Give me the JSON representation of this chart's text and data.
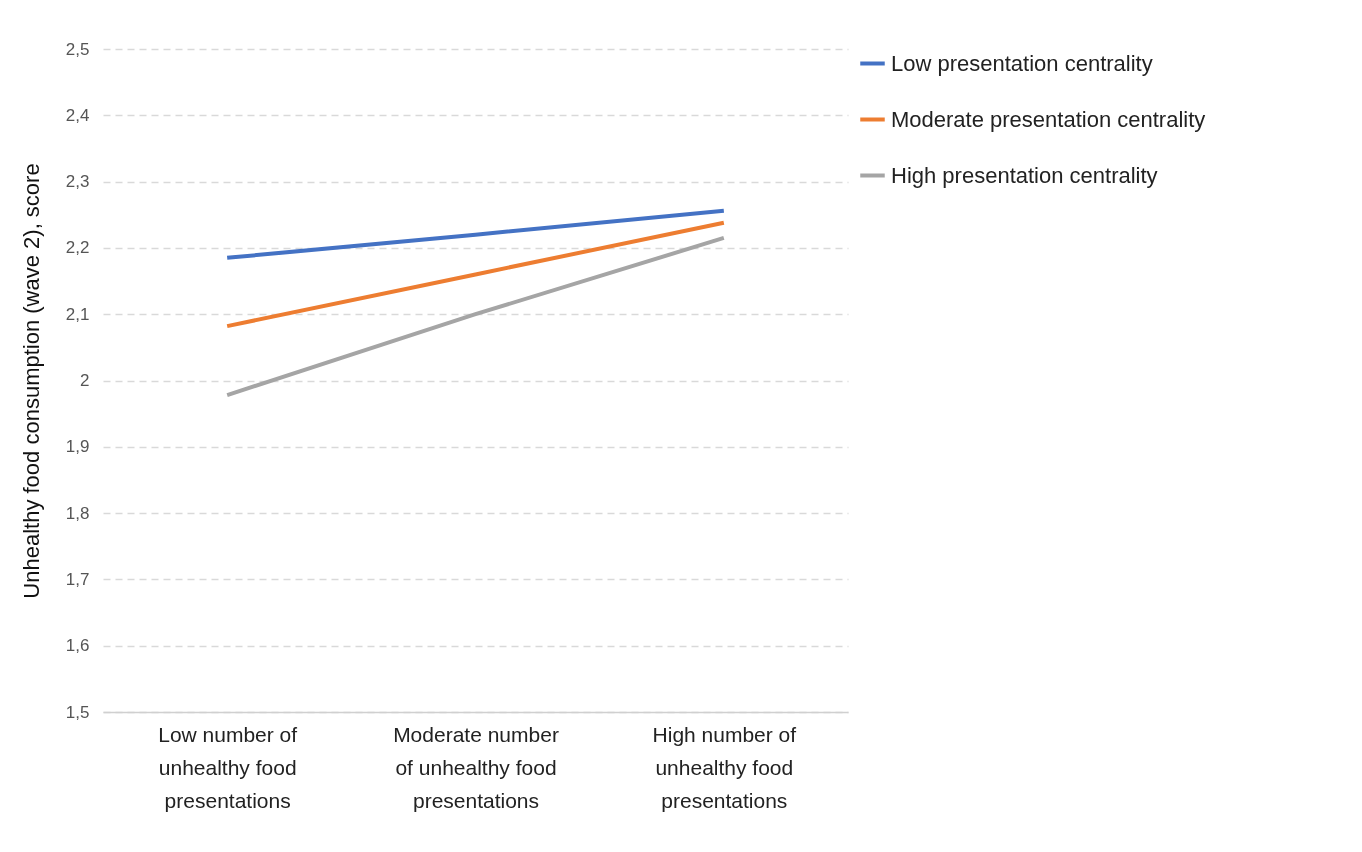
{
  "chart_data": {
    "type": "line",
    "ylabel": "Unhealthy food consumption (wave 2), score",
    "categories": [
      "Low number of unhealthy food presentations",
      "Moderate number of unhealthy food presentations",
      "High number of unhealthy food presentations"
    ],
    "series": [
      {
        "name": "Low presentation centrality",
        "color": "#4472c4",
        "values": [
          2.185,
          2.22,
          2.256
        ]
      },
      {
        "name": "Moderate presentation centrality",
        "color": "#ed7d31",
        "values": [
          2.082,
          2.16,
          2.238
        ]
      },
      {
        "name": "High presentation centrality",
        "color": "#a5a5a5",
        "values": [
          1.978,
          2.1,
          2.215
        ]
      }
    ],
    "ylim": [
      1.5,
      2.5
    ],
    "yticks": [
      {
        "value": 1.5,
        "label": "1,5"
      },
      {
        "value": 1.6,
        "label": "1,6"
      },
      {
        "value": 1.7,
        "label": "1,7"
      },
      {
        "value": 1.8,
        "label": "1,8"
      },
      {
        "value": 1.9,
        "label": "1,9"
      },
      {
        "value": 2,
        "label": "2"
      },
      {
        "value": 2.1,
        "label": "2,1"
      },
      {
        "value": 2.2,
        "label": "2,2"
      },
      {
        "value": 2.3,
        "label": "2,3"
      },
      {
        "value": 2.4,
        "label": "2,4"
      },
      {
        "value": 2.5,
        "label": "2,5"
      }
    ],
    "grid": "y",
    "legend": "right",
    "marker": "none",
    "line_style": "solid"
  }
}
